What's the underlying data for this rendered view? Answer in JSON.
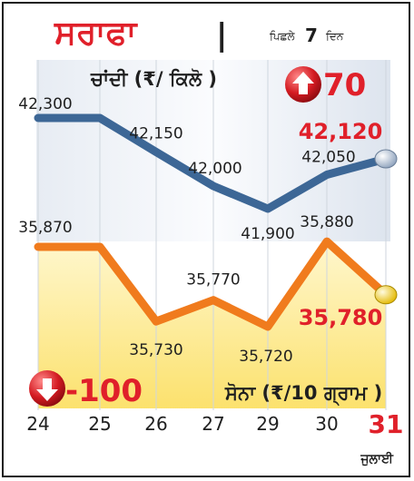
{
  "header": {
    "title": "ਸਰਾਫਾ",
    "separator": "|",
    "period_prefix": "ਪਿਛਲੇ",
    "period_num": "7",
    "period_suffix": "ਦਿਨ"
  },
  "silver": {
    "label": "ਚਾਂਦੀ (₹/ ਕਿਲੋ )",
    "change": "70",
    "latest": "42,120",
    "color": "#3d6796"
  },
  "gold": {
    "label": "ਸੋਨਾ (₹/10 ਗ੍ਰਾਮ )",
    "change": "-100",
    "latest": "35,780",
    "color": "#f07b1d"
  },
  "month_label": "ਜੁਲਾਈ",
  "colors": {
    "title_red": "#e0202a",
    "accent_red": "#e0202a",
    "dark_text": "#1f1f1f"
  },
  "icons": {
    "up": "red-up-arrow-circle-icon",
    "down": "red-down-arrow-circle-icon"
  },
  "chart_data": {
    "type": "line",
    "categories": [
      "24",
      "25",
      "26",
      "27",
      "29",
      "30",
      "31"
    ],
    "series": [
      {
        "name": "ਚਾਂਦੀ",
        "values": [
          42300,
          42300,
          42150,
          42000,
          41900,
          42050,
          42120
        ],
        "labels": [
          "42,300",
          "",
          "42,150",
          "42,000",
          "41,900",
          "42,050",
          "42,120"
        ]
      },
      {
        "name": "ਸੋਨਾ",
        "values": [
          35870,
          35870,
          35730,
          35770,
          35720,
          35880,
          35780
        ],
        "labels": [
          "35,870",
          "",
          "35,730",
          "35,770",
          "35,720",
          "35,880",
          "35,780"
        ]
      }
    ],
    "title": "ਸਰਾਫਾ",
    "xlabel": "ਜੁਲਾਈ",
    "ylabel": "",
    "highlight_last": true,
    "grid": true
  }
}
